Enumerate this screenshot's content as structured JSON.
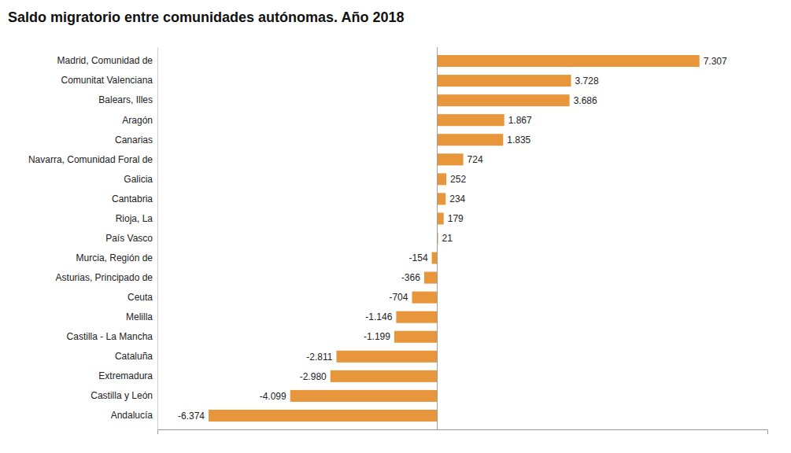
{
  "chart_data": {
    "type": "bar",
    "orientation": "horizontal",
    "title": "Saldo migratorio entre comunidades autónomas. Año 2018",
    "categories": [
      "Madrid, Comunidad de",
      "Comunitat Valenciana",
      "Balears, Illes",
      "Aragón",
      "Canarias",
      "Navarra, Comunidad Foral de",
      "Galicia",
      "Cantabria",
      "Rioja, La",
      "País Vasco",
      "Murcia, Región de",
      "Asturias, Principado de",
      "Ceuta",
      "Melilla",
      "Castilla - La Mancha",
      "Cataluña",
      "Extremadura",
      "Castilla y León",
      "Andalucía"
    ],
    "values": [
      7307,
      3728,
      3686,
      1867,
      1835,
      724,
      252,
      234,
      179,
      21,
      -154,
      -366,
      -704,
      -1146,
      -1199,
      -2811,
      -2980,
      -4099,
      -6374
    ],
    "value_labels": [
      "7.307",
      "3.728",
      "3.686",
      "1.867",
      "1.835",
      "724",
      "252",
      "234",
      "179",
      "21",
      "-154",
      "-366",
      "-704",
      "-1.146",
      "-1.199",
      "-2.811",
      "-2.980",
      "-4.099",
      "-6.374"
    ],
    "color": "#E8963C",
    "xlim": [
      -7800,
      9200
    ],
    "data_labels": true,
    "tick_labels": "y"
  }
}
